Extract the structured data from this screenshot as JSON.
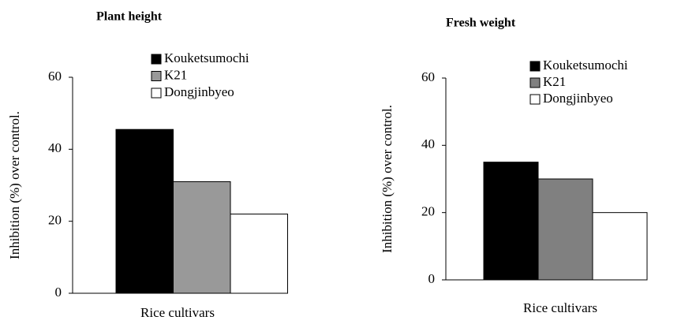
{
  "chart_data": [
    {
      "type": "bar",
      "title": "Plant height",
      "ylabel": "Inhibition (%) over control.",
      "categories": [
        "Rice cultivars"
      ],
      "series": [
        {
          "name": "Kouketsumochi",
          "color": "#000000",
          "values": [
            45.5
          ]
        },
        {
          "name": "K21",
          "color": "#999999",
          "values": [
            31
          ]
        },
        {
          "name": "Dongjinbyeo",
          "color": "#ffffff",
          "values": [
            22
          ]
        }
      ],
      "ylim": [
        0,
        60
      ],
      "yticks": [
        0,
        20,
        40,
        60
      ]
    },
    {
      "type": "bar",
      "title": "Fresh weight",
      "ylabel": "Inhibition (%) over control.",
      "categories": [
        "Rice cultivars"
      ],
      "series": [
        {
          "name": "Kouketsumochi",
          "color": "#000000",
          "values": [
            35
          ]
        },
        {
          "name": "K21",
          "color": "#808080",
          "values": [
            30
          ]
        },
        {
          "name": "Dongjinbyeo",
          "color": "#ffffff",
          "values": [
            20
          ]
        }
      ],
      "ylim": [
        0,
        60
      ],
      "yticks": [
        0,
        20,
        40,
        60
      ]
    }
  ]
}
